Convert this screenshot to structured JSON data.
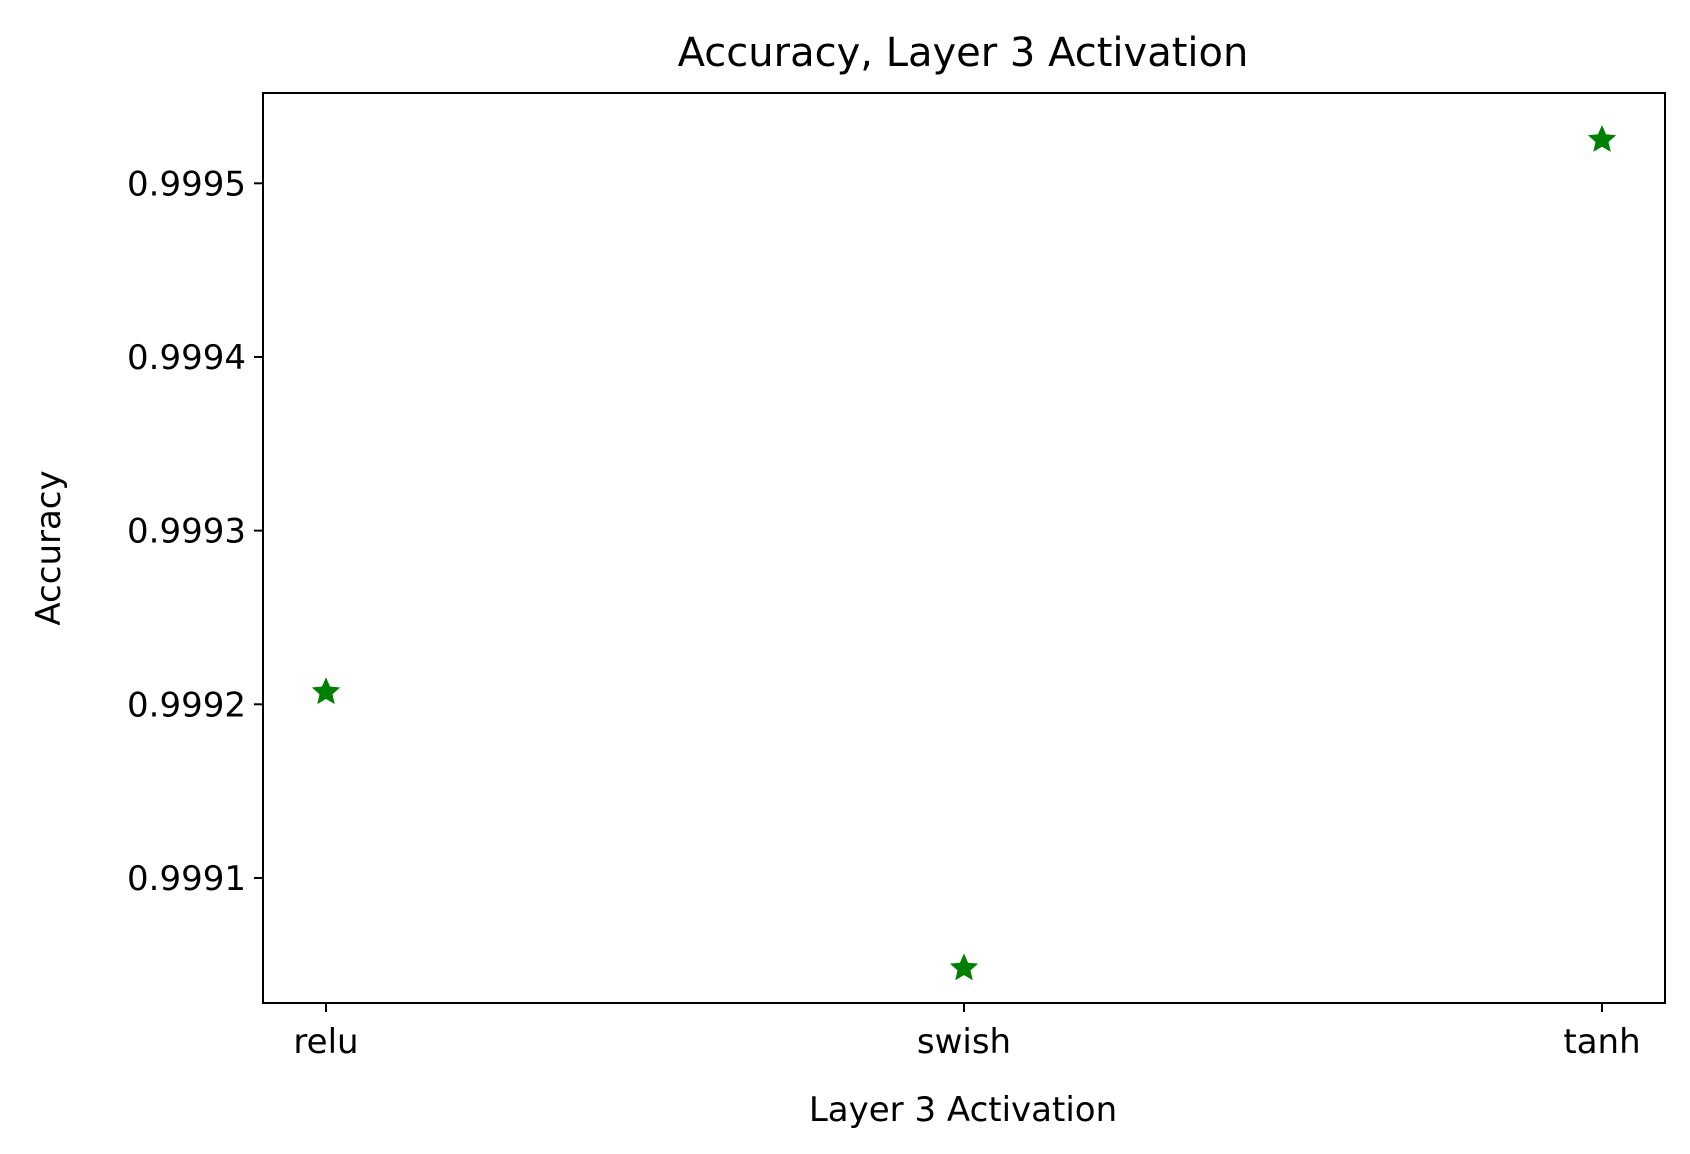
{
  "chart_data": {
    "type": "scatter",
    "title": "Accuracy, Layer 3 Activation",
    "xlabel": "Layer 3 Activation",
    "ylabel": "Accuracy",
    "categories": [
      "relu",
      "swish",
      "tanh"
    ],
    "values": [
      0.999207,
      0.999048,
      0.999525
    ],
    "ylim": [
      0.999028,
      0.999552
    ],
    "yticks": [
      0.9991,
      0.9992,
      0.9993,
      0.9994,
      0.9995
    ],
    "ytick_labels": [
      "0.9991",
      "0.9992",
      "0.9993",
      "0.9994",
      "0.9995"
    ],
    "marker": "star",
    "marker_color": "#008000",
    "grid": false,
    "legend": false
  }
}
